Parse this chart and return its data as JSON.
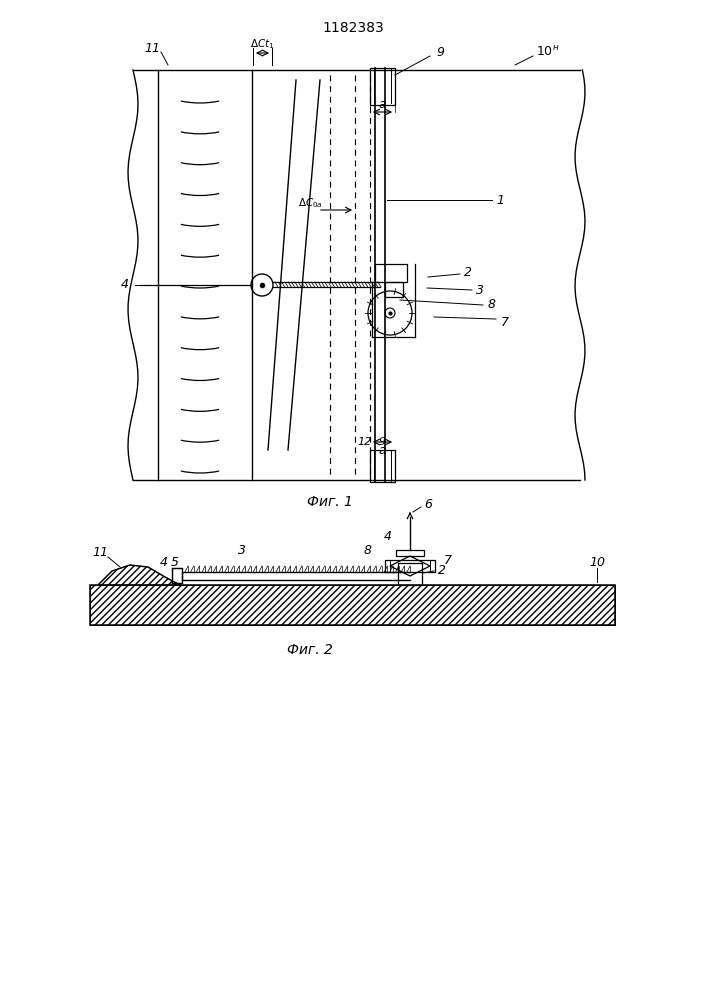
{
  "title": "1182383",
  "fig1_caption": "Фиг. 1",
  "fig2_caption": "Фиг. 2",
  "bg_color": "#ffffff",
  "fig_width": 7.07,
  "fig_height": 10.0
}
